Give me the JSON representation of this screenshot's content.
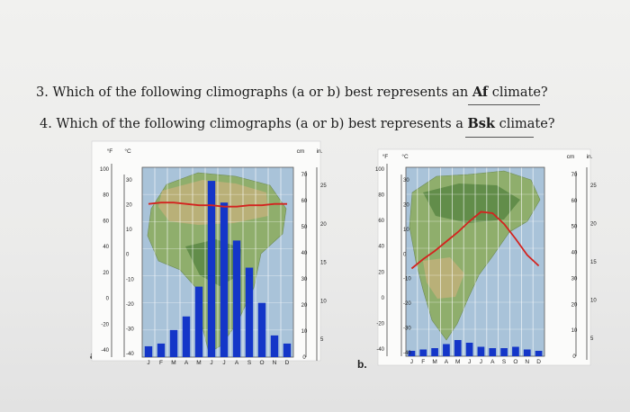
{
  "questions": [
    {
      "number": "3.",
      "prefix": "Which of the following climographs (a or b) best represents an ",
      "term": "Af",
      "suffix": " climate?"
    },
    {
      "number": "4.",
      "prefix": "Which of the following climographs (a or b) best represents a ",
      "term": "Bsk",
      "suffix": " climate?"
    }
  ],
  "chart_data": [
    {
      "panel_label": "a.",
      "type": "bar",
      "background": "map-of-africa",
      "categories": [
        "J",
        "F",
        "M",
        "A",
        "M",
        "J",
        "J",
        "A",
        "S",
        "O",
        "N",
        "D"
      ],
      "precip_cm": [
        4,
        5,
        10,
        15,
        26,
        65,
        57,
        43,
        33,
        20,
        8,
        5
      ],
      "temp_f": [
        73,
        74,
        74,
        73,
        72,
        72,
        71,
        71,
        72,
        72,
        73,
        73
      ],
      "series": [
        {
          "name": "",
          "kind": "bar",
          "values": [
            4,
            5,
            10,
            15,
            26,
            65,
            57,
            43,
            33,
            20,
            8,
            5
          ],
          "color": "#1436c8"
        },
        {
          "name": "",
          "kind": "line",
          "values": [
            73,
            74,
            74,
            73,
            72,
            72,
            71,
            71,
            72,
            72,
            73,
            73
          ],
          "color": "#d3231f"
        }
      ],
      "left_axes": {
        "f_label": "°F",
        "c_label": "°C",
        "f_ticks": [
          "100",
          "80",
          "60",
          "40",
          "20",
          "0",
          "-20",
          "-40"
        ],
        "c_ticks": [
          "30",
          "20",
          "10",
          "0",
          "-10",
          "-20",
          "-30",
          "-40"
        ]
      },
      "right_axes": {
        "cm_label": "cm",
        "in_label": "in.",
        "cm_ticks": [
          "70",
          "60",
          "50",
          "40",
          "30",
          "20",
          "10",
          "0"
        ],
        "in_ticks": [
          "25",
          "20",
          "15",
          "10",
          "5"
        ]
      },
      "ylim_f": [
        -40,
        100
      ],
      "ylim_cm": [
        0,
        70
      ]
    },
    {
      "panel_label": "b.",
      "type": "bar",
      "background": "map-of-north-america",
      "categories": [
        "J",
        "F",
        "M",
        "A",
        "M",
        "J",
        "J",
        "A",
        "S",
        "O",
        "N",
        "D"
      ],
      "precip_cm": [
        2,
        2.5,
        3,
        4.5,
        6,
        5,
        3.5,
        3,
        3,
        3.5,
        2.5,
        2
      ],
      "temp_f": [
        25,
        32,
        38,
        45,
        52,
        60,
        67,
        66,
        58,
        47,
        35,
        27
      ],
      "series": [
        {
          "name": "",
          "kind": "bar",
          "values": [
            2,
            2.5,
            3,
            4.5,
            6,
            5,
            3.5,
            3,
            3,
            3.5,
            2.5,
            2
          ],
          "color": "#1436c8"
        },
        {
          "name": "",
          "kind": "line",
          "values": [
            25,
            32,
            38,
            45,
            52,
            60,
            67,
            66,
            58,
            47,
            35,
            27
          ],
          "color": "#d3231f"
        }
      ],
      "left_axes": {
        "f_label": "°F",
        "c_label": "°C",
        "f_ticks": [
          "100",
          "80",
          "60",
          "40",
          "20",
          "0",
          "-20",
          "-40"
        ],
        "c_ticks": [
          "30",
          "20",
          "10",
          "0",
          "-10",
          "-20",
          "-30",
          "-40"
        ]
      },
      "right_axes": {
        "cm_label": "cm",
        "in_label": "in.",
        "cm_ticks": [
          "70",
          "60",
          "50",
          "40",
          "30",
          "20",
          "10",
          "0"
        ],
        "in_ticks": [
          "25",
          "20",
          "15",
          "10",
          "5"
        ]
      },
      "ylim_f": [
        -40,
        100
      ],
      "ylim_cm": [
        0,
        70
      ]
    }
  ]
}
